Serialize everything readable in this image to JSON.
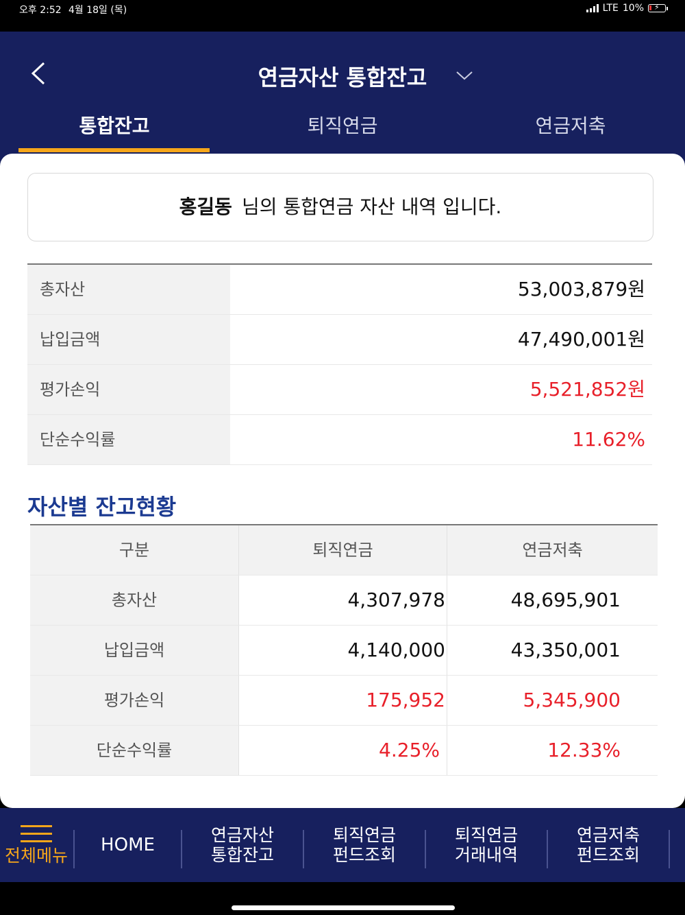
{
  "status": {
    "time": "오후 2:52",
    "date": "4월 18일 (목)",
    "network": "LTE",
    "battery": "10%"
  },
  "header": {
    "title": "연금자산 통합잔고"
  },
  "tabs": [
    {
      "label": "통합잔고"
    },
    {
      "label": "퇴직연금"
    },
    {
      "label": "연금저축"
    }
  ],
  "greeting": {
    "name": "홍길동",
    "text": "님의 통합연금 자산 내역 입니다."
  },
  "summary": [
    {
      "label": "총자산",
      "value": "53,003,879원"
    },
    {
      "label": "납입금액",
      "value": "47,490,001원"
    },
    {
      "label": "평가손익",
      "value": "5,521,852원"
    },
    {
      "label": "단순수익률",
      "value": "11.62%"
    }
  ],
  "section_title": "자산별 잔고현황",
  "detail": {
    "headers": [
      "구분",
      "퇴직연금",
      "연금저축"
    ],
    "rows": [
      {
        "label": "총자산",
        "retirement": "4,307,978",
        "savings": "48,695,901"
      },
      {
        "label": "납입금액",
        "retirement": "4,140,000",
        "savings": "43,350,001"
      },
      {
        "label": "평가손익",
        "retirement": "175,952",
        "savings": "5,345,900"
      },
      {
        "label": "단순수익률",
        "retirement": "4.25%",
        "savings": "12.33%"
      }
    ]
  },
  "bottom_nav": {
    "menu": "전체메뉴",
    "home": "HOME",
    "items": [
      {
        "line1": "연금자산",
        "line2": "통합잔고"
      },
      {
        "line1": "퇴직연금",
        "line2": "펀드조회"
      },
      {
        "line1": "퇴직연금",
        "line2": "거래내역"
      },
      {
        "line1": "연금저축",
        "line2": "펀드조회"
      }
    ]
  },
  "colors": {
    "header": "#17205e",
    "accent": "#f6a61a",
    "positive": "#e8202a",
    "section": "#1b3a91"
  },
  "icons": [
    "back-arrow-icon",
    "chevron-down-icon",
    "hamburger-icon",
    "signal-icon",
    "battery-icon"
  ]
}
